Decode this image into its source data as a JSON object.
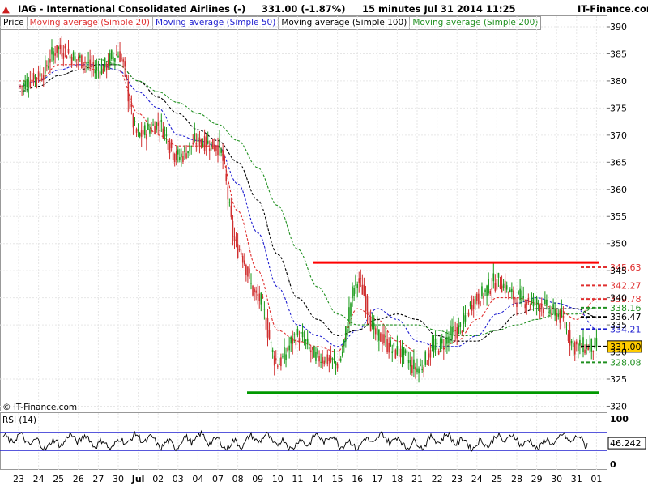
{
  "header": {
    "title": "IAG - International Consolidated Airlines  (-)",
    "quote": "331.00 (-1.87%)",
    "timeframe": "15 minutes  Jul 31 2014 11:25",
    "brand": "IT-Finance.com"
  },
  "legend": [
    {
      "label": "Price",
      "color": "#000000"
    },
    {
      "label": "Moving average (Simple 20)",
      "color": "#e03030"
    },
    {
      "label": "Moving average (Simple 50)",
      "color": "#2020d0"
    },
    {
      "label": "Moving average (Simple 100)",
      "color": "#000000"
    },
    {
      "label": "Moving average (Simple 200)",
      "color": "#209020"
    }
  ],
  "watermark": "© IT-Finance.com",
  "rsi_label": "RSI (14)",
  "colors": {
    "up": "#1a9a1a",
    "down": "#d03030",
    "ma20": "#e03030",
    "ma50": "#2020d0",
    "ma100": "#000000",
    "ma200": "#209020",
    "resistance": "#ff0000",
    "support": "#009900",
    "price_tag": "#ffcc00",
    "grid": "#e6e6e6"
  },
  "chart_data": [
    {
      "type": "candlestick",
      "title": "IAG - International Consolidated Airlines",
      "interval": "15 minutes",
      "ylim": [
        320,
        392
      ],
      "y_ticks": [
        320,
        325,
        330,
        335,
        340,
        345,
        350,
        355,
        360,
        365,
        370,
        375,
        380,
        385,
        390
      ],
      "grid": true,
      "dates": [
        "23",
        "24",
        "25",
        "26",
        "27",
        "30",
        "Jul",
        "02",
        "03",
        "04",
        "07",
        "08",
        "09",
        "10",
        "11",
        "14",
        "15",
        "16",
        "17",
        "18",
        "21",
        "22",
        "23",
        "24",
        "25",
        "28",
        "29",
        "30",
        "31",
        "01"
      ],
      "series": [
        {
          "name": "Price",
          "close": [
            379,
            381,
            386,
            384,
            382,
            385,
            370,
            372,
            366,
            369,
            368,
            349,
            340,
            328,
            333,
            329,
            328,
            343,
            333,
            330,
            327,
            331,
            334,
            340,
            343,
            340,
            339,
            337,
            331,
            331
          ]
        },
        {
          "name": "Moving average (Simple 20)",
          "values": [
            380,
            380,
            383,
            383,
            382,
            382,
            374,
            370,
            368,
            368,
            368,
            356,
            345,
            334,
            332,
            331,
            330,
            338,
            336,
            332,
            330,
            330,
            332,
            336,
            340,
            340,
            339,
            338,
            336,
            339.78
          ]
        },
        {
          "name": "Moving average (Simple 50)",
          "values": [
            379,
            380,
            382,
            383,
            383,
            382,
            378,
            375,
            370,
            369,
            368,
            361,
            352,
            342,
            335,
            333,
            331,
            334,
            338,
            336,
            332,
            331,
            331,
            333,
            337,
            339,
            340,
            339,
            338,
            334.21
          ]
        },
        {
          "name": "Moving average (Simple 100)",
          "values": [
            378,
            379,
            381,
            382,
            383,
            383,
            380,
            377,
            374,
            371,
            369,
            365,
            358,
            348,
            340,
            336,
            333,
            334,
            336,
            337,
            336,
            333,
            332,
            332,
            334,
            337,
            338,
            338,
            338,
            336.47
          ]
        },
        {
          "name": "Moving average (Simple 200)",
          "values": [
            null,
            null,
            null,
            null,
            384,
            383,
            380,
            378,
            376,
            374,
            372,
            369,
            364,
            357,
            349,
            342,
            337,
            335,
            335,
            335,
            335,
            334,
            333,
            333,
            334,
            335,
            336,
            337,
            337,
            338.16
          ]
        }
      ],
      "levels": [
        {
          "name": "resistance",
          "value": 346.5
        },
        {
          "name": "support",
          "value": 322.5
        }
      ],
      "price_tags": [
        "345.63",
        "342.27",
        "339.78",
        "338.16",
        "336.47",
        "334.21",
        "331.00",
        "328.08"
      ]
    },
    {
      "type": "line",
      "title": "RSI (14)",
      "ylim": [
        0,
        100
      ],
      "y_ticks": [
        "100",
        "46.242",
        "0"
      ],
      "levels": [
        70,
        30
      ],
      "last_value": 46.242
    }
  ]
}
